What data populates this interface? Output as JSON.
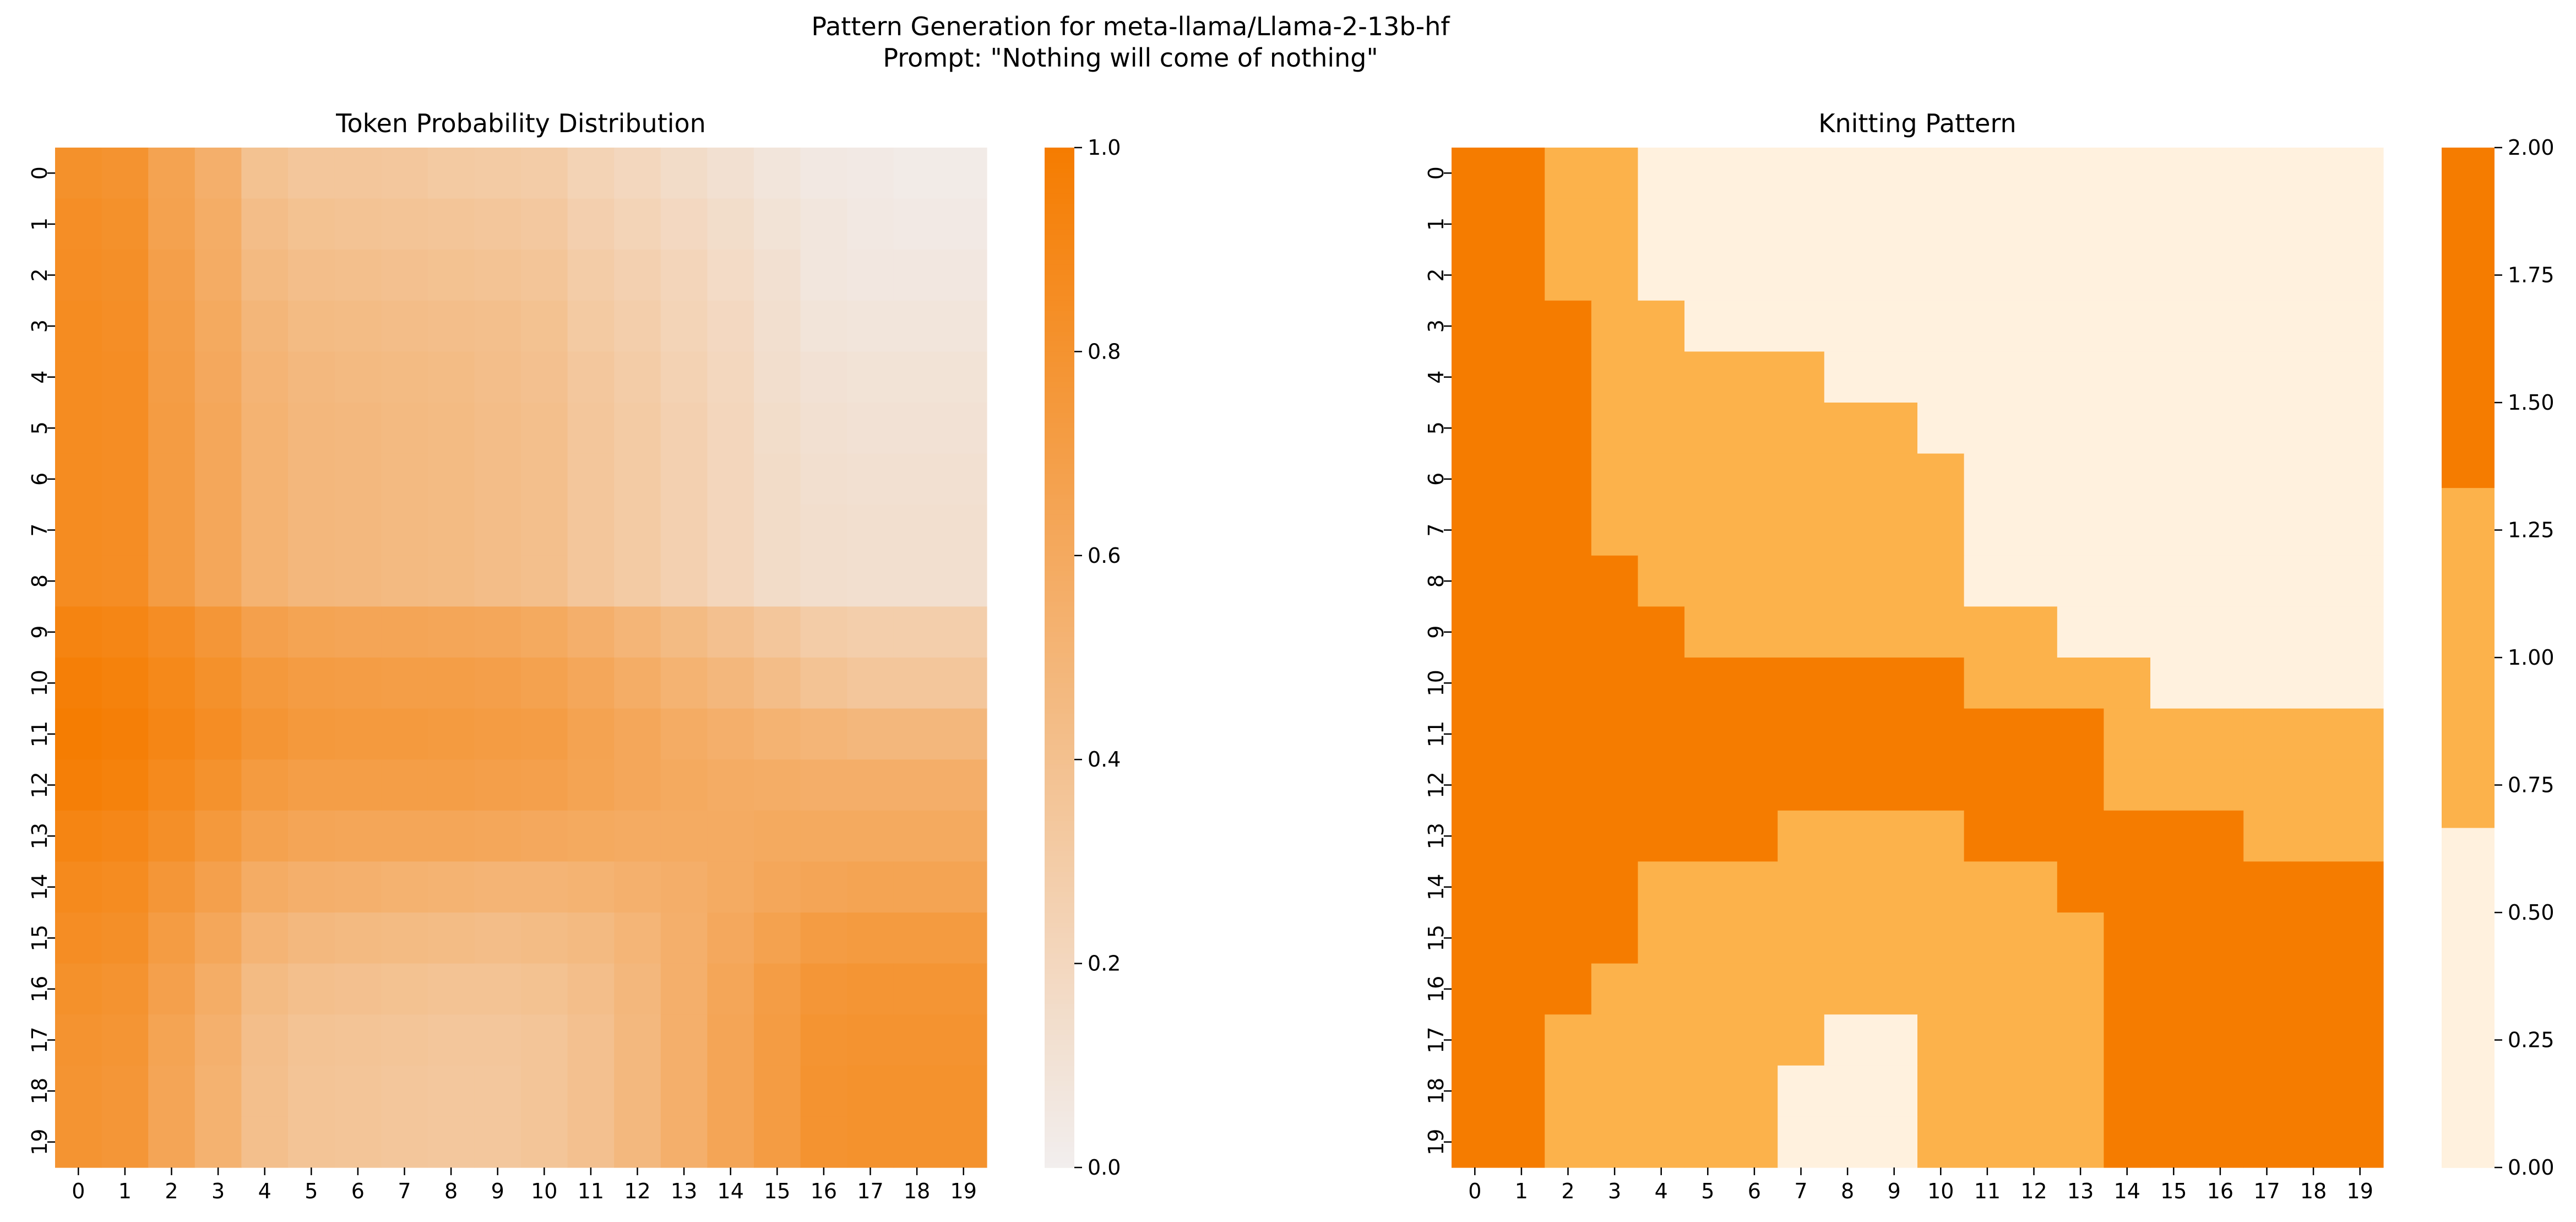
{
  "figure": {
    "suptitle_line1": "Pattern Generation for meta-llama/Llama-2-13b-hf",
    "suptitle_line2": "Prompt: \"Nothing will come of nothing\""
  },
  "colors": {
    "low": "#f2eeee",
    "high": "#f57c00",
    "knit_levels": [
      "#fff1de",
      "#fcb24b",
      "#f57c00"
    ]
  },
  "chart_data": [
    {
      "type": "heatmap",
      "title": "Token Probability Distribution",
      "x_ticks": [
        "0",
        "1",
        "2",
        "3",
        "4",
        "5",
        "6",
        "7",
        "8",
        "9",
        "10",
        "11",
        "12",
        "13",
        "14",
        "15",
        "16",
        "17",
        "18",
        "19"
      ],
      "y_ticks": [
        "0",
        "1",
        "2",
        "3",
        "4",
        "5",
        "6",
        "7",
        "8",
        "9",
        "10",
        "11",
        "12",
        "13",
        "14",
        "15",
        "16",
        "17",
        "18",
        "19"
      ],
      "colorbar": {
        "min": 0.0,
        "max": 1.0,
        "ticks": [
          "0.0",
          "0.2",
          "0.4",
          "0.6",
          "0.8",
          "1.0"
        ]
      },
      "values": [
        [
          0.82,
          0.8,
          0.66,
          0.55,
          0.39,
          0.35,
          0.35,
          0.34,
          0.32,
          0.31,
          0.3,
          0.24,
          0.2,
          0.16,
          0.12,
          0.08,
          0.05,
          0.04,
          0.03,
          0.03
        ],
        [
          0.84,
          0.82,
          0.67,
          0.57,
          0.43,
          0.39,
          0.38,
          0.37,
          0.36,
          0.35,
          0.33,
          0.27,
          0.23,
          0.19,
          0.15,
          0.1,
          0.07,
          0.05,
          0.04,
          0.04
        ],
        [
          0.85,
          0.83,
          0.69,
          0.58,
          0.46,
          0.42,
          0.41,
          0.4,
          0.39,
          0.38,
          0.36,
          0.3,
          0.26,
          0.22,
          0.17,
          0.12,
          0.07,
          0.06,
          0.06,
          0.06
        ],
        [
          0.86,
          0.84,
          0.7,
          0.6,
          0.49,
          0.45,
          0.44,
          0.43,
          0.42,
          0.41,
          0.39,
          0.32,
          0.28,
          0.23,
          0.19,
          0.13,
          0.09,
          0.08,
          0.08,
          0.08
        ],
        [
          0.86,
          0.85,
          0.71,
          0.61,
          0.51,
          0.47,
          0.46,
          0.45,
          0.44,
          0.42,
          0.4,
          0.34,
          0.3,
          0.25,
          0.2,
          0.14,
          0.11,
          0.1,
          0.1,
          0.1
        ],
        [
          0.86,
          0.85,
          0.72,
          0.62,
          0.52,
          0.48,
          0.47,
          0.46,
          0.45,
          0.43,
          0.41,
          0.35,
          0.31,
          0.26,
          0.21,
          0.15,
          0.12,
          0.11,
          0.11,
          0.11
        ],
        [
          0.86,
          0.85,
          0.72,
          0.62,
          0.52,
          0.48,
          0.47,
          0.46,
          0.45,
          0.43,
          0.41,
          0.35,
          0.31,
          0.26,
          0.21,
          0.16,
          0.13,
          0.12,
          0.12,
          0.12
        ],
        [
          0.86,
          0.85,
          0.72,
          0.62,
          0.52,
          0.48,
          0.47,
          0.46,
          0.45,
          0.43,
          0.41,
          0.35,
          0.31,
          0.26,
          0.21,
          0.16,
          0.14,
          0.13,
          0.13,
          0.13
        ],
        [
          0.86,
          0.85,
          0.72,
          0.62,
          0.52,
          0.48,
          0.47,
          0.46,
          0.45,
          0.43,
          0.41,
          0.35,
          0.31,
          0.26,
          0.21,
          0.16,
          0.14,
          0.13,
          0.13,
          0.13
        ],
        [
          0.93,
          0.91,
          0.85,
          0.77,
          0.68,
          0.65,
          0.64,
          0.64,
          0.63,
          0.62,
          0.6,
          0.55,
          0.5,
          0.45,
          0.4,
          0.35,
          0.3,
          0.28,
          0.28,
          0.28
        ],
        [
          0.97,
          0.95,
          0.89,
          0.82,
          0.75,
          0.72,
          0.71,
          0.7,
          0.7,
          0.69,
          0.67,
          0.62,
          0.57,
          0.52,
          0.48,
          0.43,
          0.38,
          0.35,
          0.35,
          0.35
        ],
        [
          0.99,
          0.97,
          0.91,
          0.85,
          0.78,
          0.75,
          0.74,
          0.74,
          0.73,
          0.72,
          0.71,
          0.66,
          0.62,
          0.58,
          0.55,
          0.52,
          0.5,
          0.48,
          0.48,
          0.48
        ],
        [
          0.97,
          0.95,
          0.88,
          0.81,
          0.73,
          0.7,
          0.7,
          0.7,
          0.7,
          0.69,
          0.68,
          0.65,
          0.62,
          0.6,
          0.58,
          0.57,
          0.56,
          0.56,
          0.56,
          0.56
        ],
        [
          0.92,
          0.9,
          0.83,
          0.75,
          0.67,
          0.64,
          0.63,
          0.63,
          0.63,
          0.62,
          0.61,
          0.6,
          0.59,
          0.59,
          0.59,
          0.6,
          0.6,
          0.6,
          0.6,
          0.6
        ],
        [
          0.88,
          0.86,
          0.77,
          0.68,
          0.58,
          0.55,
          0.54,
          0.53,
          0.52,
          0.51,
          0.51,
          0.52,
          0.54,
          0.56,
          0.59,
          0.62,
          0.64,
          0.65,
          0.65,
          0.65
        ],
        [
          0.85,
          0.83,
          0.72,
          0.62,
          0.51,
          0.47,
          0.46,
          0.45,
          0.44,
          0.43,
          0.44,
          0.46,
          0.5,
          0.55,
          0.61,
          0.67,
          0.72,
          0.73,
          0.73,
          0.73
        ],
        [
          0.82,
          0.8,
          0.68,
          0.57,
          0.45,
          0.41,
          0.4,
          0.39,
          0.38,
          0.38,
          0.39,
          0.42,
          0.48,
          0.55,
          0.63,
          0.71,
          0.77,
          0.78,
          0.78,
          0.78
        ],
        [
          0.8,
          0.78,
          0.65,
          0.54,
          0.42,
          0.38,
          0.37,
          0.36,
          0.35,
          0.35,
          0.36,
          0.4,
          0.47,
          0.55,
          0.64,
          0.72,
          0.79,
          0.8,
          0.8,
          0.8
        ],
        [
          0.79,
          0.77,
          0.64,
          0.53,
          0.41,
          0.37,
          0.36,
          0.35,
          0.34,
          0.34,
          0.36,
          0.4,
          0.47,
          0.55,
          0.64,
          0.72,
          0.8,
          0.81,
          0.81,
          0.81
        ],
        [
          0.79,
          0.77,
          0.64,
          0.53,
          0.41,
          0.37,
          0.36,
          0.35,
          0.34,
          0.34,
          0.36,
          0.4,
          0.47,
          0.55,
          0.64,
          0.72,
          0.8,
          0.81,
          0.81,
          0.81
        ]
      ]
    },
    {
      "type": "heatmap",
      "title": "Knitting Pattern",
      "x_ticks": [
        "0",
        "1",
        "2",
        "3",
        "4",
        "5",
        "6",
        "7",
        "8",
        "9",
        "10",
        "11",
        "12",
        "13",
        "14",
        "15",
        "16",
        "17",
        "18",
        "19"
      ],
      "y_ticks": [
        "0",
        "1",
        "2",
        "3",
        "4",
        "5",
        "6",
        "7",
        "8",
        "9",
        "10",
        "11",
        "12",
        "13",
        "14",
        "15",
        "16",
        "17",
        "18",
        "19"
      ],
      "colorbar": {
        "min": 0.0,
        "max": 2.0,
        "ticks": [
          "0.00",
          "0.25",
          "0.50",
          "0.75",
          "1.00",
          "1.25",
          "1.50",
          "1.75",
          "2.00"
        ]
      },
      "values": [
        [
          2,
          2,
          1,
          1,
          0,
          0,
          0,
          0,
          0,
          0,
          0,
          0,
          0,
          0,
          0,
          0,
          0,
          0,
          0,
          0
        ],
        [
          2,
          2,
          1,
          1,
          0,
          0,
          0,
          0,
          0,
          0,
          0,
          0,
          0,
          0,
          0,
          0,
          0,
          0,
          0,
          0
        ],
        [
          2,
          2,
          1,
          1,
          0,
          0,
          0,
          0,
          0,
          0,
          0,
          0,
          0,
          0,
          0,
          0,
          0,
          0,
          0,
          0
        ],
        [
          2,
          2,
          2,
          1,
          1,
          0,
          0,
          0,
          0,
          0,
          0,
          0,
          0,
          0,
          0,
          0,
          0,
          0,
          0,
          0
        ],
        [
          2,
          2,
          2,
          1,
          1,
          1,
          1,
          1,
          0,
          0,
          0,
          0,
          0,
          0,
          0,
          0,
          0,
          0,
          0,
          0
        ],
        [
          2,
          2,
          2,
          1,
          1,
          1,
          1,
          1,
          1,
          1,
          0,
          0,
          0,
          0,
          0,
          0,
          0,
          0,
          0,
          0
        ],
        [
          2,
          2,
          2,
          1,
          1,
          1,
          1,
          1,
          1,
          1,
          1,
          0,
          0,
          0,
          0,
          0,
          0,
          0,
          0,
          0
        ],
        [
          2,
          2,
          2,
          1,
          1,
          1,
          1,
          1,
          1,
          1,
          1,
          0,
          0,
          0,
          0,
          0,
          0,
          0,
          0,
          0
        ],
        [
          2,
          2,
          2,
          2,
          1,
          1,
          1,
          1,
          1,
          1,
          1,
          0,
          0,
          0,
          0,
          0,
          0,
          0,
          0,
          0
        ],
        [
          2,
          2,
          2,
          2,
          2,
          1,
          1,
          1,
          1,
          1,
          1,
          1,
          1,
          0,
          0,
          0,
          0,
          0,
          0,
          0
        ],
        [
          2,
          2,
          2,
          2,
          2,
          2,
          2,
          2,
          2,
          2,
          2,
          1,
          1,
          1,
          1,
          0,
          0,
          0,
          0,
          0
        ],
        [
          2,
          2,
          2,
          2,
          2,
          2,
          2,
          2,
          2,
          2,
          2,
          2,
          2,
          2,
          1,
          1,
          1,
          1,
          1,
          1
        ],
        [
          2,
          2,
          2,
          2,
          2,
          2,
          2,
          2,
          2,
          2,
          2,
          2,
          2,
          2,
          1,
          1,
          1,
          1,
          1,
          1
        ],
        [
          2,
          2,
          2,
          2,
          2,
          2,
          2,
          1,
          1,
          1,
          1,
          2,
          2,
          2,
          2,
          2,
          2,
          1,
          1,
          1
        ],
        [
          2,
          2,
          2,
          2,
          1,
          1,
          1,
          1,
          1,
          1,
          1,
          1,
          1,
          2,
          2,
          2,
          2,
          2,
          2,
          2
        ],
        [
          2,
          2,
          2,
          2,
          1,
          1,
          1,
          1,
          1,
          1,
          1,
          1,
          1,
          1,
          2,
          2,
          2,
          2,
          2,
          2
        ],
        [
          2,
          2,
          2,
          1,
          1,
          1,
          1,
          1,
          1,
          1,
          1,
          1,
          1,
          1,
          2,
          2,
          2,
          2,
          2,
          2
        ],
        [
          2,
          2,
          1,
          1,
          1,
          1,
          1,
          1,
          0,
          0,
          1,
          1,
          1,
          1,
          2,
          2,
          2,
          2,
          2,
          2
        ],
        [
          2,
          2,
          1,
          1,
          1,
          1,
          1,
          0,
          0,
          0,
          1,
          1,
          1,
          1,
          2,
          2,
          2,
          2,
          2,
          2
        ],
        [
          2,
          2,
          1,
          1,
          1,
          1,
          1,
          0,
          0,
          0,
          1,
          1,
          1,
          1,
          2,
          2,
          2,
          2,
          2,
          2
        ]
      ]
    }
  ]
}
